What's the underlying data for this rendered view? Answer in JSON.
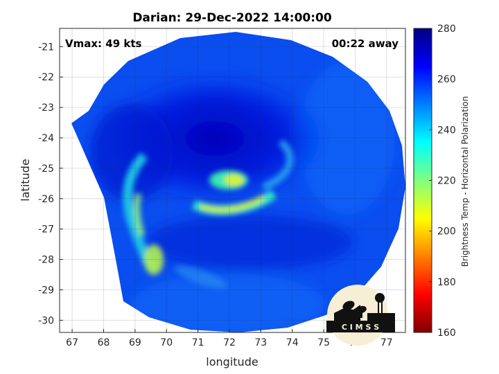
{
  "chart_data": {
    "type": "heatmap",
    "title": "Darian: 29-Dec-2022 14:00:00",
    "xlabel": "longitude",
    "ylabel": "latitude",
    "xlim": [
      66.6,
      77.6
    ],
    "ylim": [
      -30.4,
      -20.4
    ],
    "xticks": [
      "67",
      "68",
      "69",
      "70",
      "71",
      "72",
      "73",
      "74",
      "75",
      "76",
      "77"
    ],
    "yticks": [
      "-21",
      "-22",
      "-23",
      "-24",
      "-25",
      "-26",
      "-27",
      "-28",
      "-29",
      "-30"
    ],
    "grid": true,
    "annotations": {
      "vmax": "Vmax: 49 kts",
      "time_offset": "00:22 away"
    },
    "colorbar": {
      "label": "Brightness Temp - Horizontal Polarization",
      "range": [
        160,
        280
      ],
      "ticks": [
        "160",
        "180",
        "200",
        "220",
        "240",
        "260",
        "280"
      ],
      "colormap": "jet"
    },
    "features": {
      "storm_center": {
        "lon": 72.1,
        "lat": -25.4,
        "value": 215
      },
      "inner_band": {
        "lon": 72.0,
        "lat": -26.3,
        "value": 218
      },
      "outer_band": {
        "lon": 69.4,
        "lat": -27.8,
        "value": 225
      },
      "cold_core": {
        "lon": 71.5,
        "lat": -24.2,
        "value": 272
      },
      "background": 252
    },
    "logo_text": "C I M S S"
  }
}
